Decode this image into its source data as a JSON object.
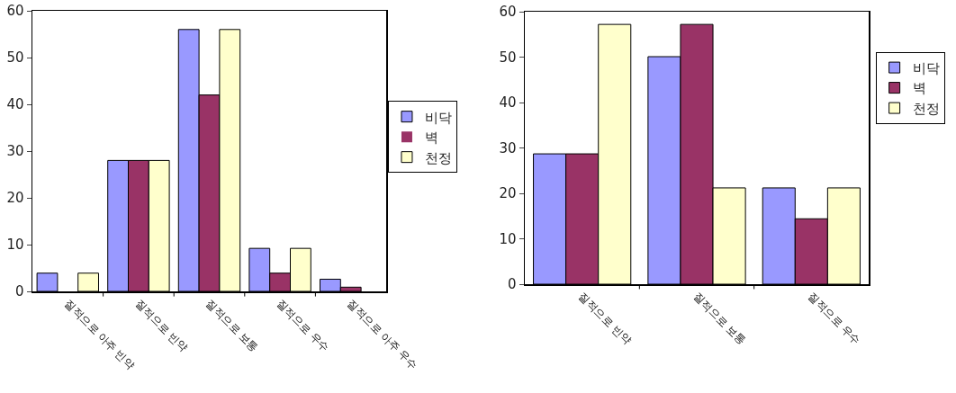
{
  "chart_data": [
    {
      "type": "bar",
      "categories": [
        "질적으로 아주 빈약",
        "질적으로 빈약",
        "질적으로 보통",
        "질적으로 우수",
        "질적으로 아주 우수"
      ],
      "series": [
        {
          "name": "비닥",
          "color": "#9999ff",
          "values": [
            3.9,
            28.0,
            56.0,
            9.2,
            2.6
          ]
        },
        {
          "name": "벽",
          "color": "#993366",
          "values": [
            0,
            28.0,
            42.0,
            3.9,
            0.9
          ]
        },
        {
          "name": "천정",
          "color": "#ffffcc",
          "values": [
            3.9,
            28.0,
            56.0,
            9.2,
            0
          ]
        }
      ],
      "ylim": [
        0,
        60
      ],
      "yticks": [
        0,
        10,
        20,
        30,
        40,
        50,
        60
      ],
      "grid": false,
      "legend": "right"
    },
    {
      "type": "bar",
      "categories": [
        "질적으로 빈약",
        "질적으로 보통",
        "질적으로 우수"
      ],
      "series": [
        {
          "name": "비닥",
          "color": "#9999ff",
          "values": [
            28.7,
            50.1,
            21.2
          ]
        },
        {
          "name": "벽",
          "color": "#993366",
          "values": [
            28.7,
            57.2,
            14.4
          ]
        },
        {
          "name": "천정",
          "color": "#ffffcc",
          "values": [
            57.2,
            21.2,
            21.2
          ]
        }
      ],
      "ylim": [
        0,
        60
      ],
      "yticks": [
        0,
        10,
        20,
        30,
        40,
        50,
        60
      ],
      "grid": false,
      "legend": "right"
    }
  ]
}
